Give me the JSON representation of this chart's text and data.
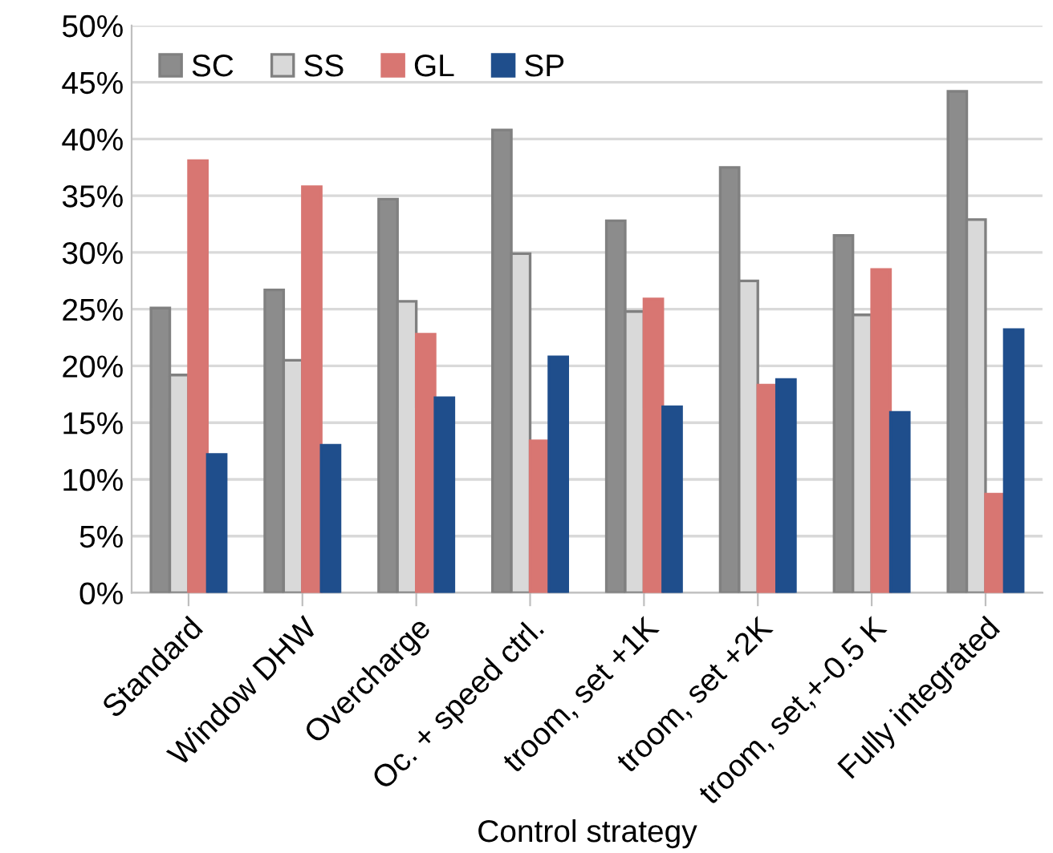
{
  "chart_data": {
    "type": "bar",
    "xlabel": "Control strategy",
    "categories": [
      "Standard",
      "Window DHW",
      "Overcharge",
      "Oc. + speed ctrl.",
      "troom, set +1K",
      "troom, set +2K",
      "troom, set,+-0.5 K",
      "Fully integrated"
    ],
    "series": [
      {
        "name": "SC",
        "color": "#8c8c8c",
        "values": [
          25.1,
          26.7,
          34.7,
          40.8,
          32.8,
          37.5,
          31.5,
          44.2
        ]
      },
      {
        "name": "SS",
        "color": "#d9d9d9",
        "values": [
          19.2,
          20.5,
          25.7,
          29.9,
          24.8,
          27.5,
          24.5,
          32.9
        ]
      },
      {
        "name": "GL",
        "color": "#d87672",
        "values": [
          38.1,
          35.8,
          22.8,
          13.4,
          25.9,
          18.3,
          28.5,
          8.7
        ]
      },
      {
        "name": "SP",
        "color": "#1f4e8c",
        "values": [
          12.2,
          13.0,
          17.2,
          20.8,
          16.4,
          18.8,
          15.9,
          23.2
        ]
      }
    ],
    "ylim": [
      0,
      50
    ],
    "yticks": [
      {
        "value": 0,
        "label": "0%"
      },
      {
        "value": 5,
        "label": "5%"
      },
      {
        "value": 10,
        "label": "10%"
      },
      {
        "value": 15,
        "label": "15%"
      },
      {
        "value": 20,
        "label": "20%"
      },
      {
        "value": 25,
        "label": "25%"
      },
      {
        "value": 30,
        "label": "30%"
      },
      {
        "value": 35,
        "label": "35%"
      },
      {
        "value": 40,
        "label": "40%"
      },
      {
        "value": 45,
        "label": "45%"
      },
      {
        "value": 50,
        "label": "50%"
      }
    ],
    "grid": "y",
    "legend": "top left"
  }
}
